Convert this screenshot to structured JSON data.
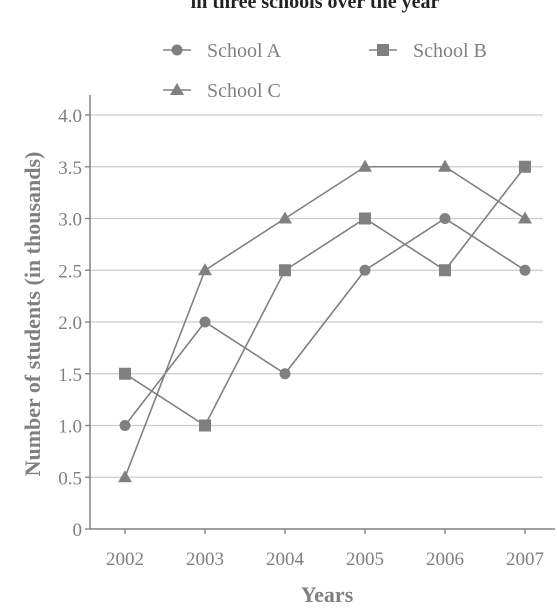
{
  "chart_data": {
    "type": "line",
    "title": "in three schools over the year",
    "xlabel": "Years",
    "ylabel": "Number of students (in thousands)",
    "categories": [
      "2002",
      "2003",
      "2004",
      "2005",
      "2006",
      "2007"
    ],
    "ylim": [
      0,
      4.0
    ],
    "yticks": [
      "0",
      "0.5",
      "1.0",
      "1.5",
      "2.0",
      "2.5",
      "3.0",
      "3.5",
      "4.0"
    ],
    "grid": true,
    "legend_position": "top",
    "series": [
      {
        "name": "School A",
        "marker": "circle",
        "values": [
          1.0,
          2.0,
          1.5,
          2.5,
          3.0,
          2.5
        ]
      },
      {
        "name": "School B",
        "marker": "square",
        "values": [
          1.5,
          1.0,
          2.5,
          3.0,
          2.5,
          3.5
        ]
      },
      {
        "name": "School C",
        "marker": "triangle",
        "values": [
          0.5,
          2.5,
          3.0,
          3.5,
          3.5,
          3.0
        ]
      }
    ],
    "colors": {
      "line": "#808080",
      "grid": "#cccccc",
      "text": "#808080",
      "title": "#222222"
    }
  }
}
